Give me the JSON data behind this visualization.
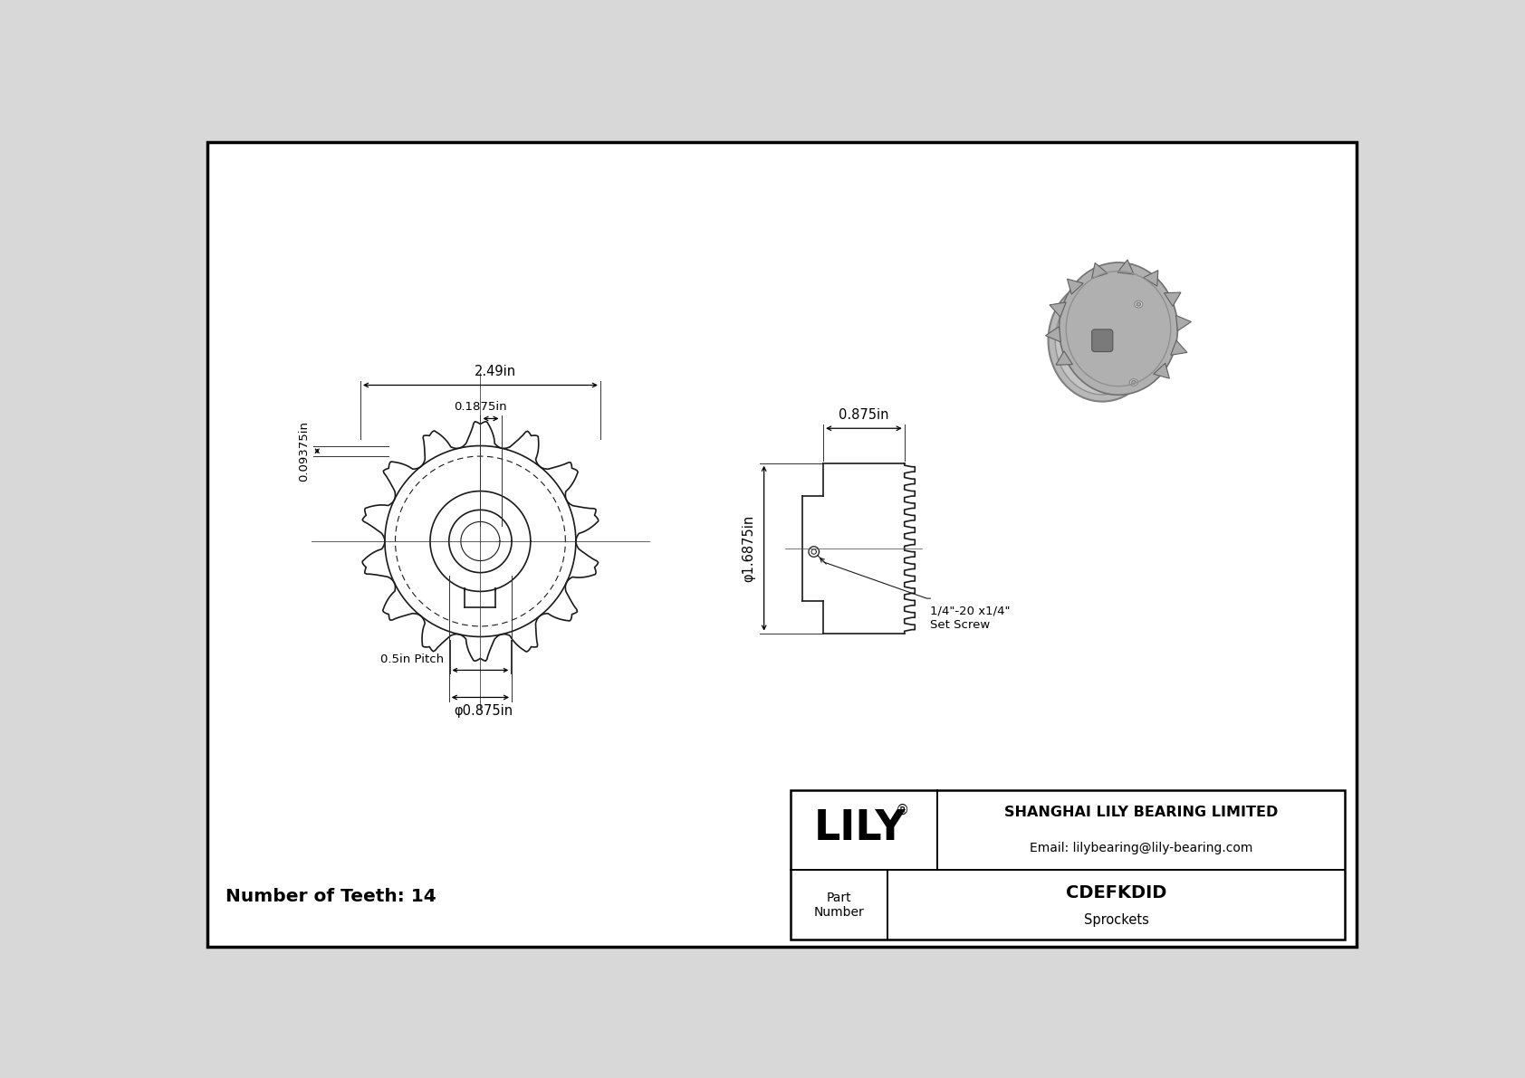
{
  "bg_color": "#d8d8d8",
  "drawing_bg": "#ffffff",
  "border_color": "#000000",
  "line_color": "#1a1a1a",
  "dim_color": "#000000",
  "title": "CDEFKDID",
  "subtitle": "Sprockets",
  "company": "SHANGHAI LILY BEARING LIMITED",
  "email": "Email: lilybearing@lily-bearing.com",
  "num_teeth": 14,
  "dim_outer_label": "2.49in",
  "dim_hub_offset_label": "0.1875in",
  "dim_tooth_depth_label": "0.09375in",
  "dim_bore_label": "φ0.875in",
  "dim_width_label": "0.875in",
  "dim_pitch_dia_label": "φ1.6875in",
  "dim_pitch_label": "0.5in Pitch",
  "set_screw_label": "1/4\"-20 x1/4\"",
  "set_screw2_label": "Set Screw",
  "teeth_label": "Number of Teeth: 14",
  "lily_text": "LILY",
  "registered": "®"
}
